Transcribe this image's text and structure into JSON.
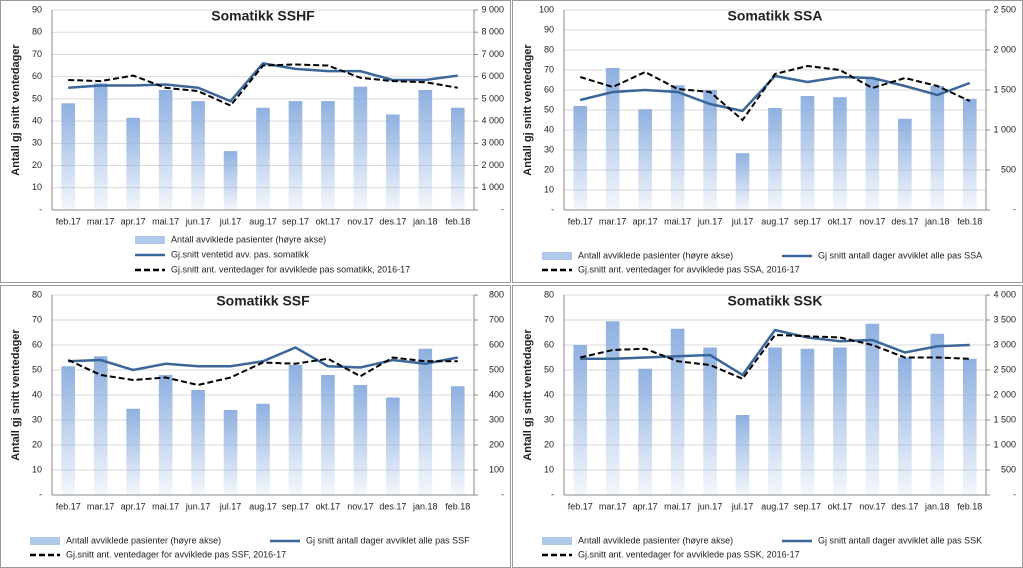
{
  "chart_data": [
    {
      "type": "combo",
      "title": "Somatikk SSHF",
      "y_label": "Antall gj snitt ventedager",
      "legend": "stacked",
      "grid": true,
      "categories": [
        "feb.17",
        "mar.17",
        "apr.17",
        "mai.17",
        "jun.17",
        "jul.17",
        "aug.17",
        "sep.17",
        "okt.17",
        "nov.17",
        "des.17",
        "jan.18",
        "feb.18"
      ],
      "ylim": [
        0,
        90
      ],
      "yticks": [
        {
          "value": 0,
          "label": "-"
        },
        10,
        20,
        30,
        40,
        50,
        60,
        70,
        80,
        90
      ],
      "y2lim": [
        0,
        9000
      ],
      "y2ticks": [
        {
          "value": 0,
          "label": "-"
        },
        {
          "value": 1000,
          "label": "1 000"
        },
        {
          "value": 2000,
          "label": "2 000"
        },
        {
          "value": 3000,
          "label": "3 000"
        },
        {
          "value": 4000,
          "label": "4 000"
        },
        {
          "value": 5000,
          "label": "5 000"
        },
        {
          "value": 6000,
          "label": "6 000"
        },
        {
          "value": 7000,
          "label": "7 000"
        },
        {
          "value": 8000,
          "label": "8 000"
        },
        {
          "value": 9000,
          "label": "9 000"
        }
      ],
      "series": [
        {
          "name": "Antall avviklede pasienter (høyre akse)",
          "kind": "bar",
          "axis": "y2",
          "color": "#8fb0e0",
          "values": [
            4800,
            5700,
            4150,
            5400,
            4900,
            2650,
            4600,
            4900,
            4900,
            5550,
            4300,
            5400,
            4600
          ]
        },
        {
          "name": "Gj.snitt ventetid avv. pas. somatikk",
          "kind": "line",
          "color": "#3a6699",
          "values": [
            55,
            56,
            56,
            56.5,
            55,
            49,
            66,
            63.5,
            62.5,
            62.5,
            58.5,
            58.5,
            60.5
          ]
        },
        {
          "name": "Gj.snitt ant. ventedager for avviklede pas somatikk, 2016-17",
          "kind": "dashed",
          "color": "#000000",
          "values": [
            58.5,
            58,
            60.5,
            55,
            53.5,
            47,
            65,
            65.5,
            65,
            59.5,
            58,
            57.5,
            55
          ]
        }
      ]
    },
    {
      "type": "combo",
      "title": "Somatikk SSA",
      "y_label": "Antall gj snitt ventedager",
      "legend": "wrapped",
      "grid": true,
      "categories": [
        "feb.17",
        "mar.17",
        "apr.17",
        "mai.17",
        "jun.17",
        "jul.17",
        "aug.17",
        "sep.17",
        "okt.17",
        "nov.17",
        "des.17",
        "jan.18",
        "feb.18"
      ],
      "ylim": [
        0,
        100
      ],
      "yticks": [
        {
          "value": 0,
          "label": "-"
        },
        10,
        20,
        30,
        40,
        50,
        60,
        70,
        80,
        90,
        100
      ],
      "y2lim": [
        0,
        2500
      ],
      "y2ticks": [
        {
          "value": 0,
          "label": "-"
        },
        500,
        {
          "value": 1000,
          "label": "1 000"
        },
        {
          "value": 1500,
          "label": "1 500"
        },
        {
          "value": 2000,
          "label": "2 000"
        },
        {
          "value": 2500,
          "label": "2 500"
        }
      ],
      "series": [
        {
          "name": "Antall avviklede pasienter (høyre akse)",
          "kind": "bar",
          "axis": "y2",
          "color": "#8fb0e0",
          "values": [
            1300,
            1775,
            1260,
            1560,
            1500,
            710,
            1275,
            1425,
            1410,
            1650,
            1140,
            1550,
            1390
          ]
        },
        {
          "name": "Gj snitt antall dager avviklet alle pas SSA",
          "kind": "line",
          "color": "#3a6699",
          "values": [
            55,
            59,
            60,
            59,
            53,
            49.5,
            67,
            64,
            66.5,
            66,
            62,
            57.5,
            63.5
          ]
        },
        {
          "name": "Gj.snitt ant. ventedager for avviklede pas SSA, 2016-17",
          "kind": "dashed",
          "color": "#000000",
          "values": [
            66.5,
            61.5,
            69,
            60.5,
            59,
            45,
            68,
            72,
            70,
            61,
            66,
            62,
            54.5
          ]
        }
      ]
    },
    {
      "type": "combo",
      "title": "Somatikk SSF",
      "y_label": "Antall gj snitt ventedager",
      "legend": "wrapped",
      "grid": true,
      "categories": [
        "feb.17",
        "mar.17",
        "apr.17",
        "mai.17",
        "jun.17",
        "jul.17",
        "aug.17",
        "sep.17",
        "okt.17",
        "nov.17",
        "des.17",
        "jan.18",
        "feb.18"
      ],
      "ylim": [
        0,
        80
      ],
      "yticks": [
        {
          "value": 0,
          "label": "-"
        },
        10,
        20,
        30,
        40,
        50,
        60,
        70,
        80
      ],
      "y2lim": [
        0,
        800
      ],
      "y2ticks": [
        {
          "value": 0,
          "label": "-"
        },
        100,
        200,
        300,
        400,
        500,
        600,
        700,
        800
      ],
      "series": [
        {
          "name": "Antall avviklede pasienter (høyre akse)",
          "kind": "bar",
          "axis": "y2",
          "color": "#8fb0e0",
          "values": [
            515,
            555,
            345,
            480,
            420,
            340,
            365,
            520,
            480,
            440,
            390,
            585,
            435
          ]
        },
        {
          "name": "Gj snitt antall dager avviklet alle pas SSF",
          "kind": "line",
          "color": "#3a6699",
          "values": [
            53.5,
            54,
            50,
            52.5,
            51.5,
            51.5,
            53.5,
            59,
            51.5,
            51,
            54,
            52.5,
            55
          ]
        },
        {
          "name": "Gj.snitt ant. ventedager for avviklede pas SSF, 2016-17",
          "kind": "dashed",
          "color": "#000000",
          "values": [
            54,
            48,
            46,
            47,
            44,
            47,
            53,
            52.5,
            54.5,
            47.5,
            55,
            53.5,
            53.5
          ]
        }
      ]
    },
    {
      "type": "combo",
      "title": "Somatikk SSK",
      "y_label": "Antall gj snitt ventedager",
      "legend": "wrapped",
      "grid": true,
      "categories": [
        "feb.17",
        "mar.17",
        "apr.17",
        "mai.17",
        "jun.17",
        "jul.17",
        "aug.17",
        "sep.17",
        "okt.17",
        "nov.17",
        "des.17",
        "jan.18",
        "feb.18"
      ],
      "ylim": [
        0,
        80
      ],
      "yticks": [
        {
          "value": 0,
          "label": "-"
        },
        10,
        20,
        30,
        40,
        50,
        60,
        70,
        80
      ],
      "y2lim": [
        0,
        4000
      ],
      "y2ticks": [
        {
          "value": 0,
          "label": "-"
        },
        500,
        {
          "value": 1000,
          "label": "1 000"
        },
        {
          "value": 1500,
          "label": "1 500"
        },
        {
          "value": 2000,
          "label": "2 000"
        },
        {
          "value": 2500,
          "label": "2 500"
        },
        {
          "value": 3000,
          "label": "3 000"
        },
        {
          "value": 3500,
          "label": "3 500"
        },
        {
          "value": 4000,
          "label": "4 000"
        }
      ],
      "series": [
        {
          "name": "Antall avviklede pasienter (høyre akse)",
          "kind": "bar",
          "axis": "y2",
          "color": "#8fb0e0",
          "values": [
            3000,
            3475,
            2525,
            3325,
            2950,
            1600,
            2950,
            2925,
            2950,
            3425,
            2750,
            3225,
            2725
          ]
        },
        {
          "name": "Gj snitt antall dager avviklet alle pas SSK",
          "kind": "line",
          "color": "#3a6699",
          "values": [
            54.5,
            54.5,
            55,
            55.5,
            56,
            48,
            66,
            63,
            61.5,
            62,
            57,
            59.5,
            60
          ]
        },
        {
          "name": "Gj.snitt ant. ventedager for avviklede pas SSK, 2016-17",
          "kind": "dashed",
          "color": "#000000",
          "values": [
            55,
            58,
            58.5,
            53.5,
            52,
            46.5,
            64,
            63.5,
            63,
            60,
            55,
            55,
            54.5
          ]
        }
      ]
    }
  ]
}
